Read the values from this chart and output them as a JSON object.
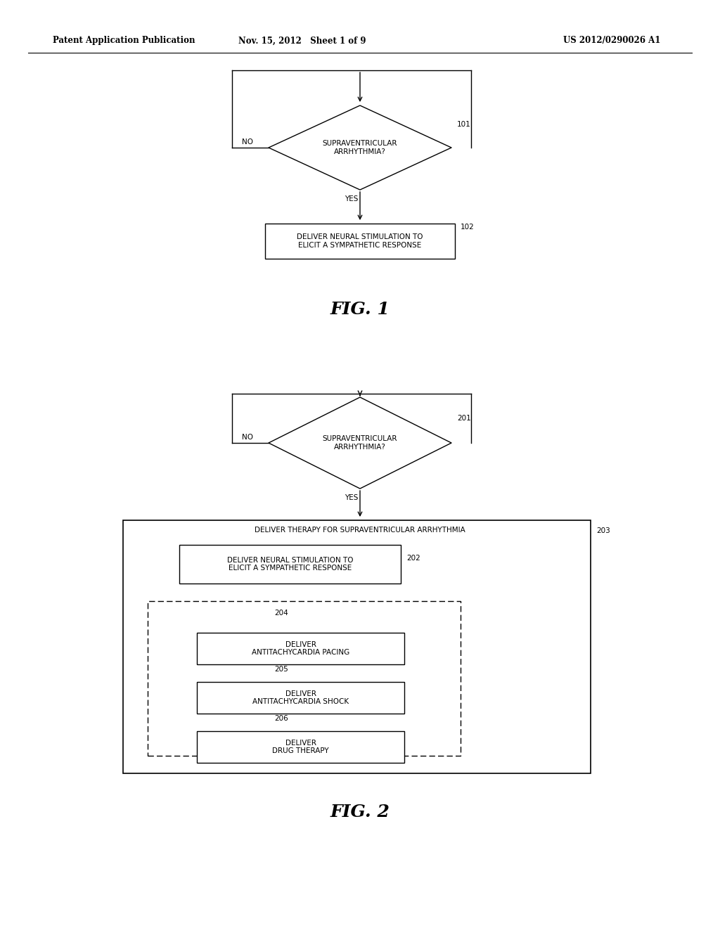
{
  "bg_color": "#ffffff",
  "header_left": "Patent Application Publication",
  "header_mid": "Nov. 15, 2012   Sheet 1 of 9",
  "header_right": "US 2012/0290026 A1",
  "fig1_label": "FIG. 1",
  "fig2_label": "FIG. 2",
  "text_color": "#000000",
  "line_color": "#000000"
}
